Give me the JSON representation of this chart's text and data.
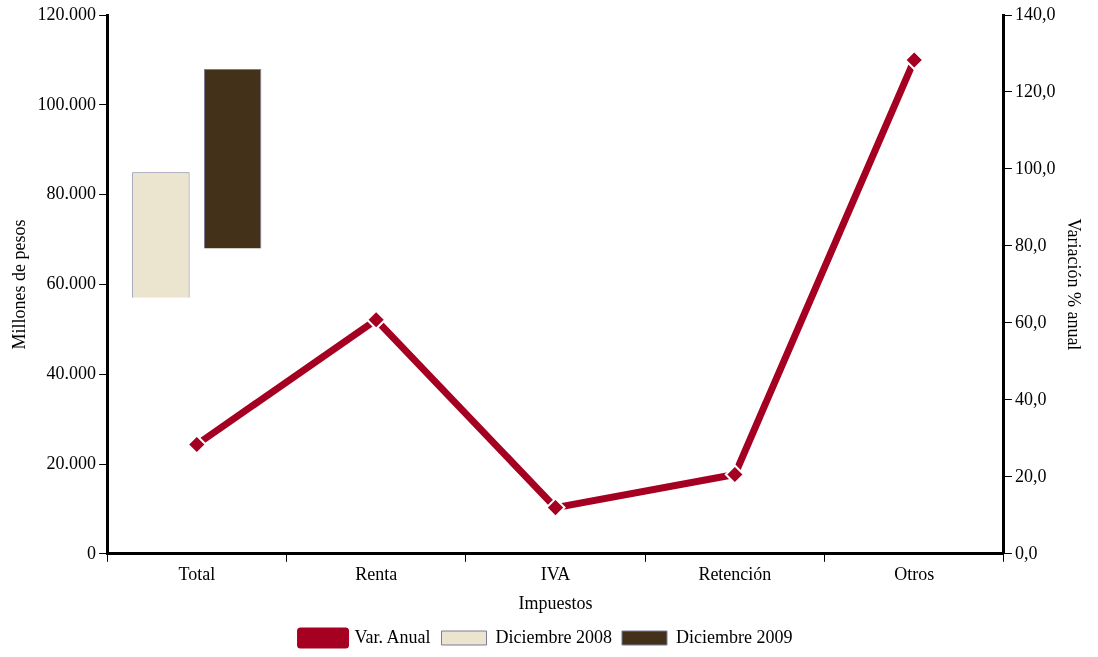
{
  "chart_data": {
    "type": "bar",
    "xlabel": "Impuestos",
    "ylabel": "Millones de pesos",
    "y2label": "Variación % anual",
    "categories": [
      "Total",
      "Renta",
      "IVA",
      "Retención",
      "Otros"
    ],
    "series": [
      {
        "name": "Diciembre 2008",
        "color": "#ebe5d0",
        "values": [
          28000,
          null,
          null,
          null,
          null
        ],
        "base": [
          57000,
          null,
          null,
          null,
          null
        ]
      },
      {
        "name": "Diciembre 2009",
        "color": "#433219",
        "values": [
          40000,
          null,
          null,
          null,
          null
        ],
        "base": [
          68000,
          null,
          null,
          null,
          null
        ]
      },
      {
        "name": "Var. Anual",
        "type": "line",
        "axis": "y2",
        "color": "#a50021",
        "values": [
          28.4,
          60.8,
          12.0,
          20.6,
          128.3
        ]
      }
    ],
    "ylim": [
      0,
      120000
    ],
    "yticks": [
      {
        "value": 0,
        "label": "0"
      },
      {
        "value": 20000,
        "label": "20.000"
      },
      {
        "value": 40000,
        "label": "40.000"
      },
      {
        "value": 60000,
        "label": "60.000"
      },
      {
        "value": 80000,
        "label": "80.000"
      },
      {
        "value": 100000,
        "label": "100.000"
      },
      {
        "value": 120000,
        "label": "120.000"
      }
    ],
    "y2lim": [
      0,
      140
    ],
    "y2ticks": [
      {
        "value": 0,
        "label": "0,0"
      },
      {
        "value": 20,
        "label": "20,0"
      },
      {
        "value": 40,
        "label": "40,0"
      },
      {
        "value": 60,
        "label": "60,0"
      },
      {
        "value": 80,
        "label": "80,0"
      },
      {
        "value": 100,
        "label": "100,0"
      },
      {
        "value": 120,
        "label": "120,0"
      },
      {
        "value": 140,
        "label": "140,0"
      }
    ],
    "grid": false,
    "legend": "bottom",
    "marker": "diamond",
    "line_style": "solid"
  }
}
